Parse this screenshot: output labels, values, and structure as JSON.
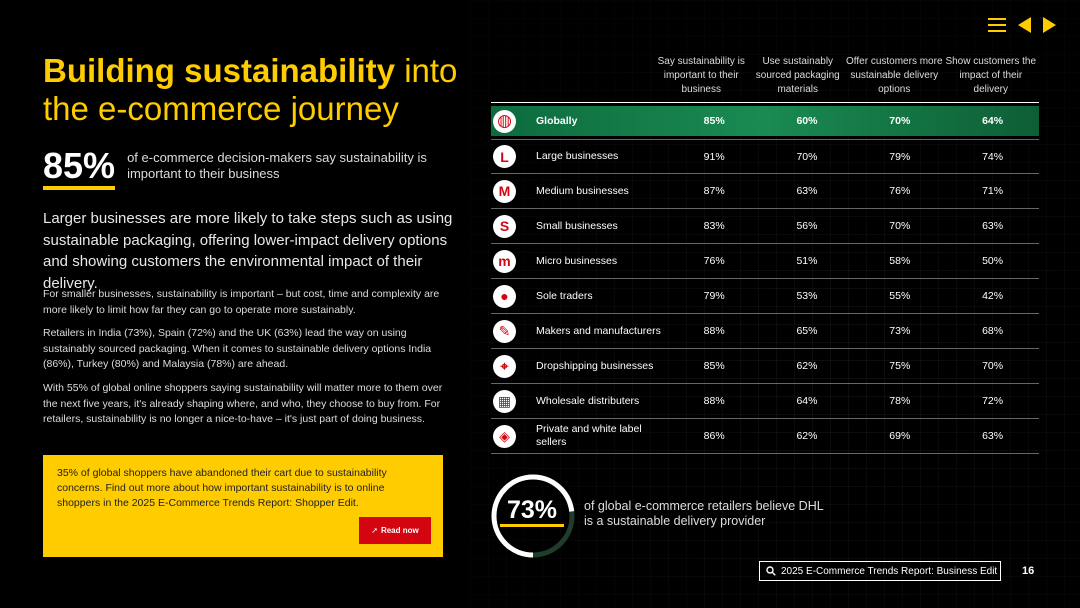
{
  "title": {
    "bold": "Building sustainability",
    "rest1": " into",
    "rest2": "the e-commerce journey"
  },
  "stat_main": {
    "value": "85%",
    "text": "of e-commerce decision-makers say sustainability is important to their business"
  },
  "lead": "Larger businesses are more likely to take steps such as using sustainable packaging, offering lower-impact delivery options and showing customers the environmental impact of their delivery.",
  "paragraphs": [
    "For smaller businesses, sustainability is important – but cost, time and complexity are more likely to limit how far they can go to operate more sustainably.",
    "Retailers in India (73%), Spain (72%) and the UK (63%) lead the way on using sustainably sourced packaging. When it comes to sustainable delivery options India (86%), Turkey (80%) and Malaysia (78%) are ahead.",
    "With 55% of global online shoppers saying sustainability will matter more to them over the next five years, it's already shaping where, and who, they choose to buy from. For retailers, sustainability is no longer a nice-to-have – it's just part of doing business."
  ],
  "promo": {
    "text": "35% of global shoppers have abandoned their cart due to sustainability concerns. Find out more about how important sustainability is to online shoppers in the 2025 E-Commerce Trends Report: Shopper Edit.",
    "button": "Read now"
  },
  "table": {
    "headers": [
      "Say sustainability is important to their business",
      "Use sustainably sourced packaging materials",
      "Offer customers more sustainable delivery options",
      "Show customers the impact of their delivery"
    ],
    "rows": [
      {
        "icon": "globe-icon",
        "glyph": "◍",
        "label": "Globally",
        "values": [
          "85%",
          "60%",
          "70%",
          "64%"
        ]
      },
      {
        "icon": "large-business-icon",
        "glyph": "L",
        "label": "Large businesses",
        "values": [
          "91%",
          "70%",
          "79%",
          "74%"
        ]
      },
      {
        "icon": "medium-business-icon",
        "glyph": "M",
        "label": "Medium businesses",
        "values": [
          "87%",
          "63%",
          "76%",
          "71%"
        ]
      },
      {
        "icon": "small-business-icon",
        "glyph": "S",
        "label": "Small businesses",
        "values": [
          "83%",
          "56%",
          "70%",
          "63%"
        ]
      },
      {
        "icon": "micro-business-icon",
        "glyph": "m",
        "label": "Micro businesses",
        "values": [
          "76%",
          "51%",
          "58%",
          "50%"
        ]
      },
      {
        "icon": "person-icon",
        "glyph": "●",
        "label": "Sole traders",
        "values": [
          "79%",
          "53%",
          "55%",
          "42%"
        ]
      },
      {
        "icon": "tools-icon",
        "glyph": "✎",
        "label": "Makers and manufacturers",
        "values": [
          "88%",
          "65%",
          "73%",
          "68%"
        ]
      },
      {
        "icon": "location-pin-icon",
        "glyph": "⌖",
        "label": "Dropshipping businesses",
        "values": [
          "85%",
          "62%",
          "75%",
          "70%"
        ]
      },
      {
        "icon": "warehouse-icon",
        "glyph": "▦",
        "label": "Wholesale distributers",
        "values": [
          "88%",
          "64%",
          "78%",
          "72%"
        ]
      },
      {
        "icon": "tag-icon",
        "glyph": "◈",
        "label": "Private and white label sellers",
        "values": [
          "86%",
          "62%",
          "69%",
          "63%"
        ]
      }
    ]
  },
  "stat_bottom": {
    "value": "73%",
    "fraction": 0.73,
    "text": "of global e-commerce retailers believe DHL is a sustainable delivery provider"
  },
  "footer": {
    "label": "2025 E-Commerce Trends Report: Business Edit",
    "page": "16"
  },
  "colors": {
    "accent": "#FFCC00",
    "red": "#D40511",
    "green": "#1a8a52"
  }
}
